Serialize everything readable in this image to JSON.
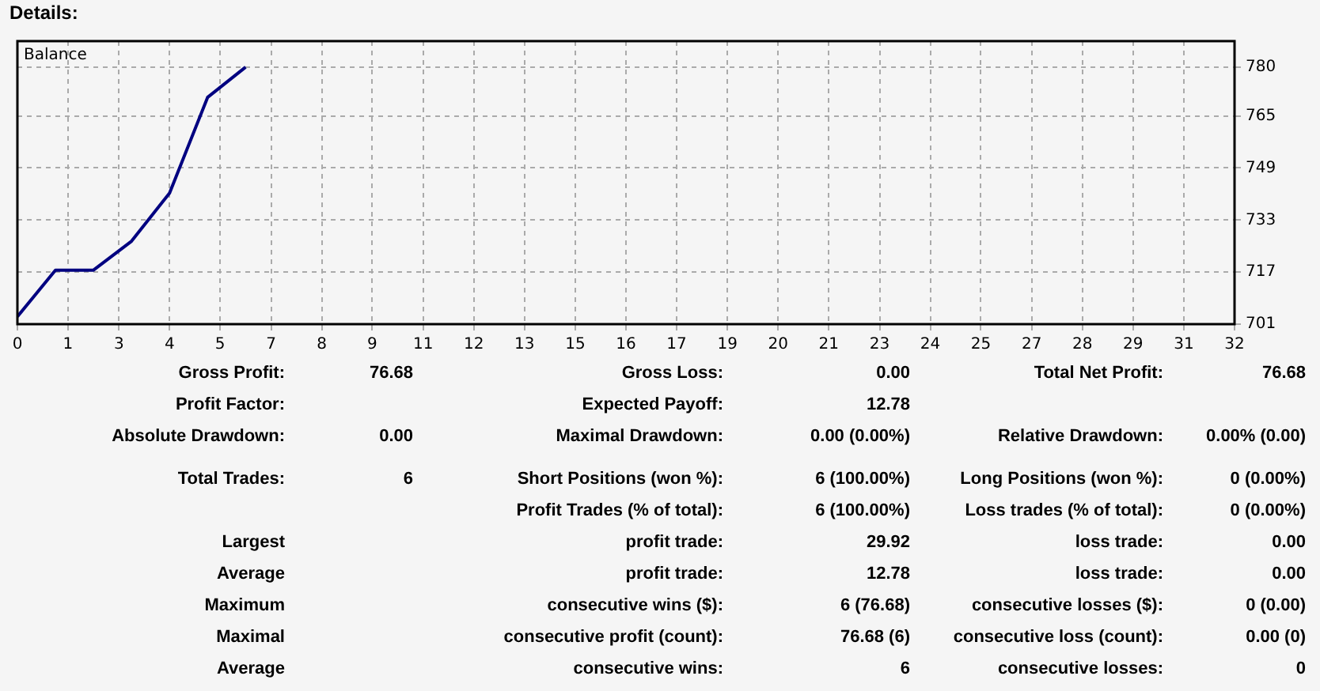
{
  "chart_data": {
    "type": "line",
    "title": "Details:",
    "subtitle": "Balance",
    "x": [
      0,
      1,
      2,
      3,
      4,
      5,
      6
    ],
    "series": [
      {
        "color": "#000080",
        "values": [
          703.3,
          717.6,
          717.6,
          726.5,
          741.3,
          770.7,
          780
        ]
      }
    ],
    "xlim": [
      0,
      32
    ],
    "xticks": [
      0,
      {
        "value": 1.33,
        "label": "1"
      },
      {
        "value": 2.67,
        "label": "3"
      },
      4,
      {
        "value": 5.33,
        "label": "5"
      },
      {
        "value": 6.67,
        "label": "7"
      },
      8,
      {
        "value": 9.33,
        "label": "9"
      },
      {
        "value": 10.67,
        "label": "11"
      },
      12,
      {
        "value": 13.33,
        "label": "13"
      },
      {
        "value": 14.67,
        "label": "15"
      },
      16,
      {
        "value": 17.33,
        "label": "17"
      },
      {
        "value": 18.67,
        "label": "19"
      },
      20,
      {
        "value": 21.33,
        "label": "21"
      },
      {
        "value": 22.67,
        "label": "23"
      },
      24,
      {
        "value": 25.33,
        "label": "25"
      },
      {
        "value": 26.67,
        "label": "27"
      },
      28,
      {
        "value": 29.33,
        "label": "29"
      },
      {
        "value": 30.67,
        "label": "31"
      },
      32
    ],
    "ylim": [
      701,
      788
    ],
    "yticks": [
      701,
      717,
      733,
      749,
      765,
      780
    ],
    "grid": true,
    "marker": "none",
    "line_style": "solid",
    "annotations": [
      "Gross Profit:",
      "76.68",
      "Gross Loss:",
      "0.00",
      "Total Net Profit:",
      "76.68",
      "Profit Factor:",
      "Expected Payoff:",
      "12.78",
      "Absolute Drawdown:",
      "0.00",
      "Maximal Drawdown:",
      "0.00 (0.00%)",
      "Relative Drawdown:",
      "0.00% (0.00)",
      "Total Trades:",
      "6",
      "Short Positions (won %):",
      "6 (100.00%)",
      "Long Positions (won %):",
      "0 (0.00%)",
      "Profit Trades (% of total):",
      "6 (100.00%)",
      "Loss trades (% of total):",
      "0 (0.00%)",
      "Largest",
      "profit trade:",
      "29.92",
      "loss trade:",
      "0.00",
      "Average",
      "profit trade:",
      "12.78",
      "loss trade:",
      "0.00",
      "Maximum",
      "consecutive wins ($):",
      "6 (76.68)",
      "consecutive losses ($):",
      "0 (0.00)",
      "Maximal",
      "consecutive profit (count):",
      "76.68 (6)",
      "consecutive loss (count):",
      "0.00 (0)",
      "Average",
      "consecutive wins:",
      "6",
      "consecutive losses:",
      "0"
    ]
  }
}
